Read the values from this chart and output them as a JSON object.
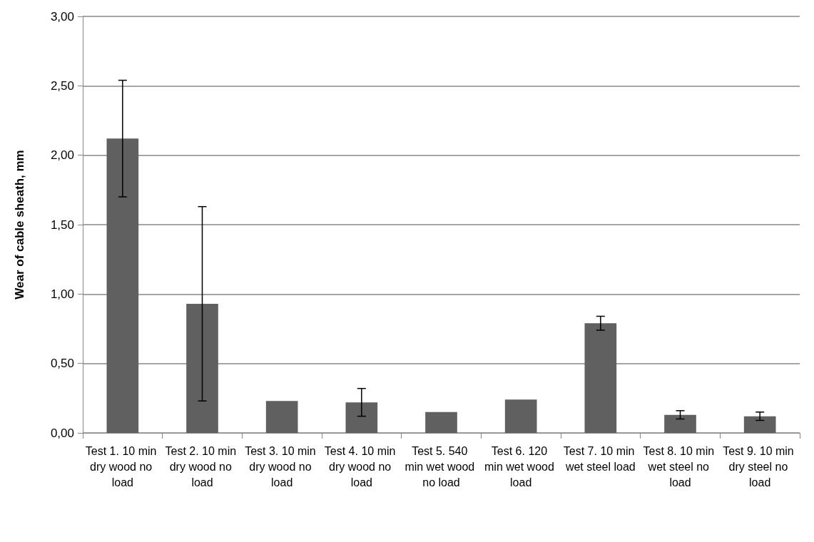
{
  "chart_data": {
    "type": "bar",
    "ylabel": "Wear of cable sheath, mm",
    "categories": [
      "Test 1. 10 min dry wood no load",
      "Test 2. 10 min dry wood no load",
      "Test 3. 10 min dry wood no load",
      "Test 4. 10 min dry wood no load",
      "Test 5. 540 min wet wood no load",
      "Test 6. 120 min wet wood load",
      "Test 7. 10 min wet steel load",
      "Test 8. 10 min wet steel no load",
      "Test 9. 10 min dry steel no load"
    ],
    "values": [
      2.12,
      0.93,
      0.23,
      0.22,
      0.15,
      0.24,
      0.79,
      0.13,
      0.12
    ],
    "errors": [
      0.42,
      0.7,
      null,
      0.1,
      null,
      null,
      0.05,
      0.03,
      0.03
    ],
    "color": "#606060",
    "ylim": [
      0,
      3
    ],
    "yticks": [
      {
        "value": 0,
        "label": "0,00"
      },
      {
        "value": 0.5,
        "label": "0,50"
      },
      {
        "value": 1,
        "label": "1,00"
      },
      {
        "value": 1.5,
        "label": "1,50"
      },
      {
        "value": 2,
        "label": "2,00"
      },
      {
        "value": 2.5,
        "label": "2,50"
      },
      {
        "value": 3,
        "label": "3,00"
      }
    ],
    "grid": "y"
  }
}
